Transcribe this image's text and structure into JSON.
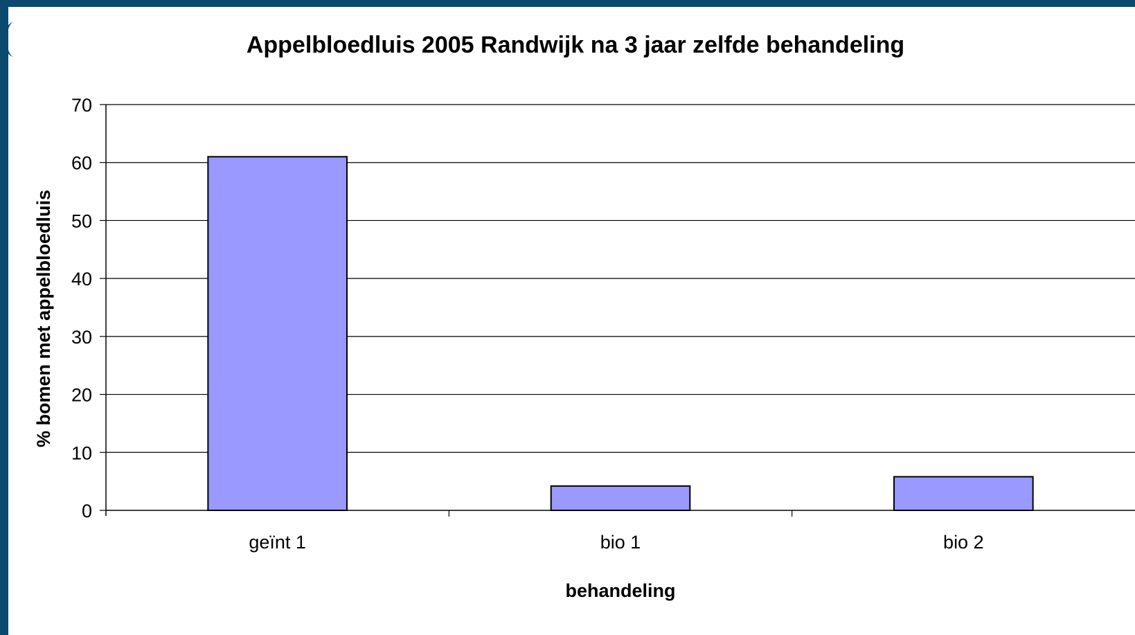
{
  "chart_data": {
    "type": "bar",
    "title": "Appelbloedluis 2005 Randwijk na 3 jaar zelfde behandeling",
    "xlabel": "behandeling",
    "ylabel": "% bomen met appelbloedluis",
    "categories": [
      "geïnt 1",
      "bio 1",
      "bio 2"
    ],
    "values": [
      61,
      4.2,
      5.8
    ],
    "ylim": [
      0,
      70
    ],
    "yticks": [
      0,
      10,
      20,
      30,
      40,
      50,
      60,
      70
    ],
    "grid": true,
    "legend": "none",
    "colors": {
      "bar_fill": "#9999ff",
      "bar_stroke": "#000000",
      "gridline": "#000000",
      "frame": "#0b4a6e"
    }
  }
}
